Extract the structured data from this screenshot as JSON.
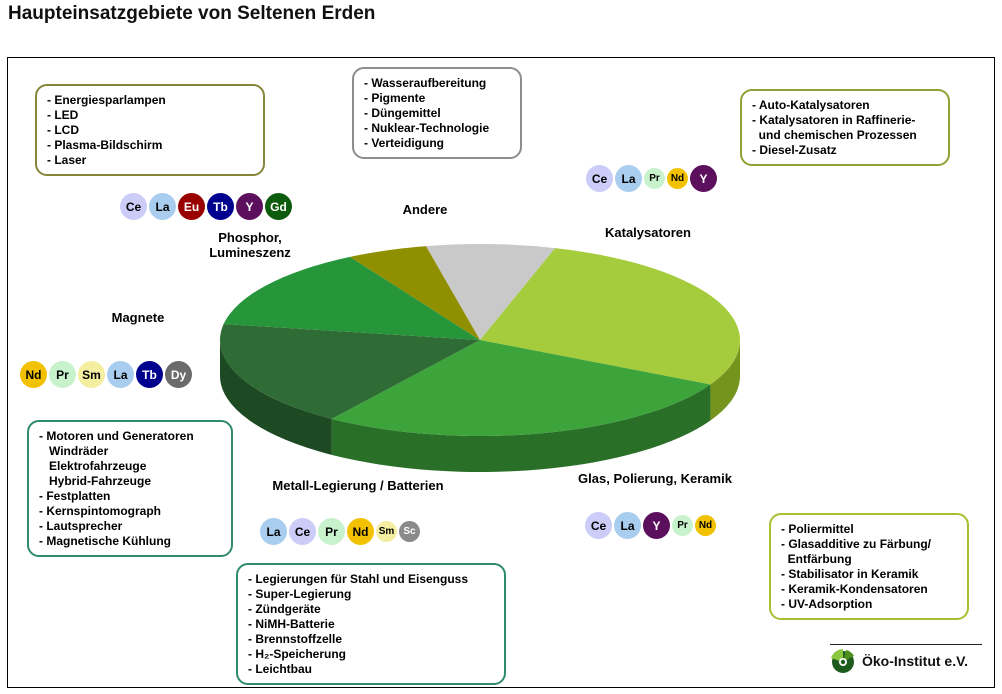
{
  "page": {
    "title": "Haupteinsatzgebiete von Seltenen Erden"
  },
  "logo": {
    "text": "Öko-Institut e.V."
  },
  "element_colors": {
    "Ce": {
      "bg": "#ccccf8",
      "fg": "#000000"
    },
    "La": {
      "bg": "#a9cdee",
      "fg": "#000000"
    },
    "Eu": {
      "bg": "#990000",
      "fg": "#ffffff"
    },
    "Tb": {
      "bg": "#00008f",
      "fg": "#ffffff"
    },
    "Y": {
      "bg": "#5c0f5c",
      "fg": "#ffffff"
    },
    "Gd": {
      "bg": "#0d5c0d",
      "fg": "#ffffff"
    },
    "Nd": {
      "bg": "#f2c200",
      "fg": "#000000"
    },
    "Pr": {
      "bg": "#c8f2cc",
      "fg": "#000000"
    },
    "Sm": {
      "bg": "#f4efa0",
      "fg": "#000000"
    },
    "Dy": {
      "bg": "#6b6b6b",
      "fg": "#ffffff"
    },
    "Sc": {
      "bg": "#8a8a8a",
      "fg": "#ffffff"
    }
  },
  "chart_data": {
    "type": "pie",
    "style": "3d",
    "title": "Haupteinsatzgebiete von Seltenen Erden",
    "start_angle_deg": -12,
    "legend_position": "around-chart",
    "slices": [
      {
        "label": "Andere",
        "value": 8,
        "color_top": "#c9c9c9",
        "color_side": "#9a9a9a"
      },
      {
        "label": "Katalysatoren",
        "value": 28,
        "color_top": "#a4cc3c",
        "color_side": "#74941d"
      },
      {
        "label": "Glas, Polierung, Keramik",
        "value": 27,
        "color_top": "#3da33b",
        "color_side": "#296f27"
      },
      {
        "label": "Metall-Legierung / Batterien",
        "value": 18,
        "color_top": "#2e6b35",
        "color_side": "#1e4a23"
      },
      {
        "label": "Magnete",
        "value": 14,
        "color_top": "#27963b",
        "color_side": "#186127"
      },
      {
        "label": "Phosphor, Lumineszenz",
        "value": 5,
        "color_top": "#8f8f00",
        "color_side": "#616100"
      }
    ]
  },
  "groups": {
    "phosphor": {
      "label": "Phosphor,\nLumineszenz",
      "elements": [
        {
          "sym": "Ce"
        },
        {
          "sym": "La"
        },
        {
          "sym": "Eu"
        },
        {
          "sym": "Tb"
        },
        {
          "sym": "Y"
        },
        {
          "sym": "Gd"
        }
      ],
      "box_lines": [
        "- Energiesparlampen",
        "- LED",
        "- LCD",
        "- Plasma-Bildschirm",
        "- Laser"
      ]
    },
    "andere": {
      "label": "Andere",
      "elements": [],
      "box_lines": [
        "- Wasseraufbereitung",
        "- Pigmente",
        "- Düngemittel",
        "- Nuklear-Technologie",
        "- Verteidigung"
      ]
    },
    "katalysatoren": {
      "label": "Katalysatoren",
      "elements": [
        {
          "sym": "Ce"
        },
        {
          "sym": "La"
        },
        {
          "sym": "Pr",
          "small": true
        },
        {
          "sym": "Nd",
          "small": true
        },
        {
          "sym": "Y"
        }
      ],
      "box_lines": [
        "- Auto-Katalysatoren",
        "- Katalysatoren in Raffinerie-",
        "  und chemischen Prozessen",
        "- Diesel-Zusatz"
      ]
    },
    "magnete": {
      "label": "Magnete",
      "elements": [
        {
          "sym": "Nd"
        },
        {
          "sym": "Pr"
        },
        {
          "sym": "Sm"
        },
        {
          "sym": "La"
        },
        {
          "sym": "Tb"
        },
        {
          "sym": "Dy"
        }
      ],
      "box_lines": [
        "- Motoren und Generatoren",
        "   Windräder",
        "   Elektrofahrzeuge",
        "   Hybrid-Fahrzeuge",
        "- Festplatten",
        "- Kernspintomograph",
        "- Lautsprecher",
        "- Magnetische Kühlung"
      ]
    },
    "metall": {
      "label": "Metall-Legierung / Batterien",
      "elements": [
        {
          "sym": "La"
        },
        {
          "sym": "Ce"
        },
        {
          "sym": "Pr"
        },
        {
          "sym": "Nd"
        },
        {
          "sym": "Sm",
          "small": true
        },
        {
          "sym": "Sc",
          "small": true
        }
      ],
      "box_lines": [
        "- Legierungen für Stahl und Eisenguss",
        "- Super-Legierung",
        "- Zündgeräte",
        "- NiMH-Batterie",
        "- Brennstoffzelle",
        "- H₂-Speicherung",
        "- Leichtbau"
      ]
    },
    "glas": {
      "label": "Glas, Polierung, Keramik",
      "elements": [
        {
          "sym": "Ce"
        },
        {
          "sym": "La"
        },
        {
          "sym": "Y"
        },
        {
          "sym": "Pr",
          "small": true
        },
        {
          "sym": "Nd",
          "small": true
        }
      ],
      "box_lines": [
        "- Poliermittel",
        "- Glasadditive zu Färbung/",
        "  Entfärbung",
        "- Stabilisator in Keramik",
        "- Keramik-Kondensatoren",
        "- UV-Adsorption"
      ]
    }
  }
}
